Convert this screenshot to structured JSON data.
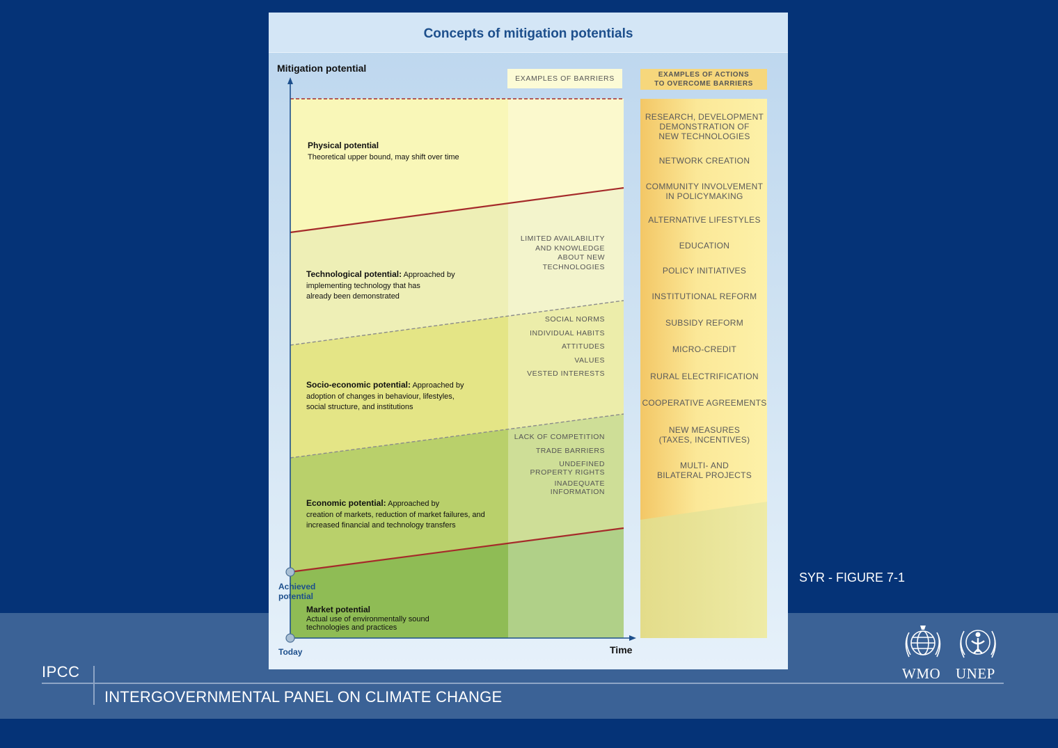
{
  "figure": {
    "title": "Concepts of mitigation potentials",
    "y_axis_label": "Mitigation potential",
    "x_axis_label": "Time",
    "today_label": "Today",
    "achieved_label": "Achieved\npotential",
    "zones": [
      {
        "title": "Physical potential",
        "desc": "Theoretical upper bound, may shift over time"
      },
      {
        "title": "Technological potential:",
        "desc": " Approached by\nimplementing technology that has\nalready been demonstrated"
      },
      {
        "title": "Socio-economic potential:",
        "desc": " Approached by\nadoption of changes in behaviour, lifestyles,\nsocial structure, and institutions"
      },
      {
        "title": "Economic potential:",
        "desc": " Approached by\ncreation of markets, reduction of market failures, and\nincreased financial and technology transfers"
      },
      {
        "title": "Market potential",
        "desc": "Actual use of environmentally sound\ntechnologies and practices"
      }
    ],
    "barriers_header": "EXAMPLES OF BARRIERS",
    "barriers": [
      "LIMITED AVAILABILITY\nAND KNOWLEDGE\nABOUT NEW\nTECHNOLOGIES",
      "SOCIAL NORMS",
      "INDIVIDUAL HABITS",
      "ATTITUDES",
      "VALUES",
      "VESTED INTERESTS",
      "LACK OF COMPETITION",
      "TRADE BARRIERS",
      "UNDEFINED\nPROPERTY RIGHTS",
      "INADEQUATE\nINFORMATION"
    ],
    "actions_header": "EXAMPLES OF ACTIONS\nTO OVERCOME BARRIERS",
    "actions": [
      "RESEARCH, DEVELOPMENT\nDEMONSTRATION OF\nNEW TECHNOLOGIES",
      "NETWORK CREATION",
      "COMMUNITY INVOLVEMENT\nIN POLICYMAKING",
      "ALTERNATIVE LIFESTYLES",
      "EDUCATION",
      "POLICY INITIATIVES",
      "INSTITUTIONAL REFORM",
      "SUBSIDY REFORM",
      "MICRO-CREDIT",
      "RURAL ELECTRIFICATION",
      "COOPERATIVE AGREEMENTS",
      "NEW MEASURES\n(TAXES, INCENTIVES)",
      "MULTI- AND\nBILATERAL PROJECTS"
    ]
  },
  "slide": {
    "figure_ref": "SYR - FIGURE 7-1",
    "short_name": "IPCC",
    "org_name": "INTERGOVERNMENTAL PANEL ON CLIMATE CHANGE",
    "logos": [
      {
        "name": "WMO",
        "icon": "wmo-emblem-icon"
      },
      {
        "name": "UNEP",
        "icon": "unep-emblem-icon"
      }
    ]
  },
  "colors": {
    "background": "#053377",
    "footer_band": "#3b6296",
    "physical": "#f9f7b8",
    "technological": "#eeefb6",
    "socio_economic": "#e4e586",
    "economic": "#b9d06b",
    "market": "#8fbc55",
    "boundary_red": "#a52a2a",
    "title_blue": "#1d4f8c"
  }
}
